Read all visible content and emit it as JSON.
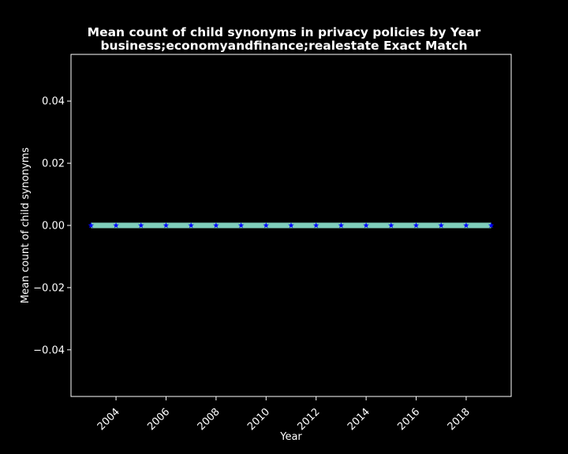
{
  "chart_data": {
    "type": "line",
    "title_lines": [
      "Mean count of child synonyms in privacy policies by Year",
      "business;economyandfinance;realestate Exact Match"
    ],
    "xlabel": "Year",
    "ylabel": "Mean count of child synonyms",
    "xlim": [
      2002.2,
      2019.8
    ],
    "ylim": [
      -0.055,
      0.055
    ],
    "xticks": [
      "2004",
      "2006",
      "2008",
      "2010",
      "2012",
      "2014",
      "2016",
      "2018"
    ],
    "yticks": [
      "0.04",
      "0.02",
      "0.00",
      "−0.02",
      "−0.04"
    ],
    "x": [
      2003,
      2004,
      2005,
      2006,
      2007,
      2008,
      2009,
      2010,
      2011,
      2012,
      2013,
      2014,
      2015,
      2016,
      2017,
      2018,
      2019
    ],
    "series": [
      {
        "values": [
          0,
          0,
          0,
          0,
          0,
          0,
          0,
          0,
          0,
          0,
          0,
          0,
          0,
          0,
          0,
          0,
          0
        ],
        "line_color": "#7fcdbb",
        "marker_color": "#0000ff",
        "marker": "star"
      }
    ],
    "grid": false,
    "legend": "none",
    "background": "#000000",
    "axis_color": "#ffffff"
  }
}
